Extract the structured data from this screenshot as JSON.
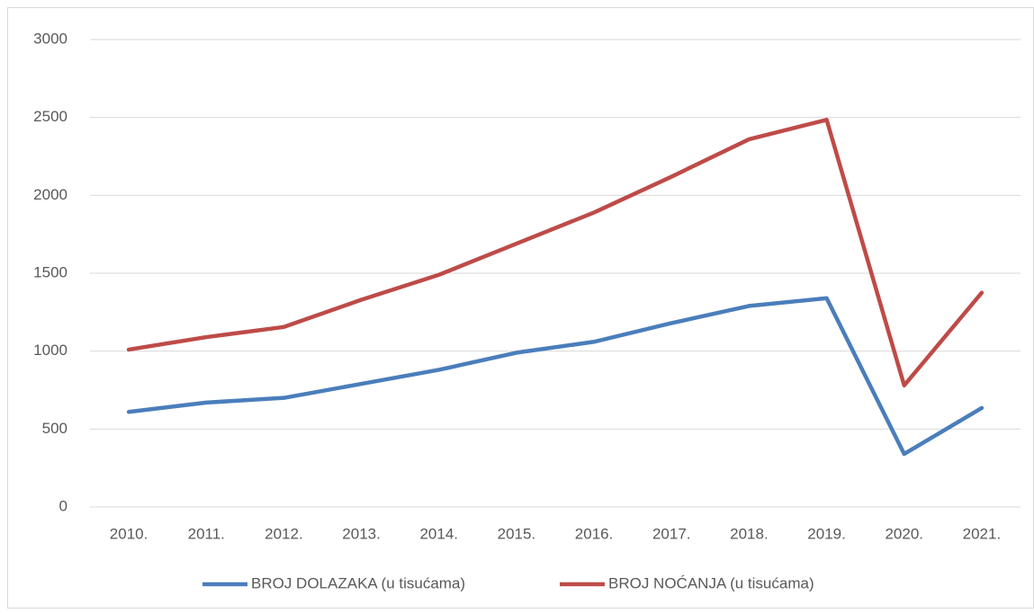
{
  "chart_data": {
    "type": "line",
    "categories": [
      "2010.",
      "2011.",
      "2012.",
      "2013.",
      "2014.",
      "2015.",
      "2016.",
      "2017.",
      "2018.",
      "2019.",
      "2020.",
      "2021."
    ],
    "series": [
      {
        "name": "BROJ DOLAZAKA (u tisućama)",
        "color": "#4a7ebb",
        "values": [
          610,
          670,
          700,
          790,
          880,
          990,
          1060,
          1180,
          1290,
          1340,
          340,
          635
        ]
      },
      {
        "name": "BROJ NOĆANJA (u tisućama)",
        "color": "#be4b48",
        "values": [
          1010,
          1090,
          1155,
          1330,
          1490,
          1690,
          1890,
          2120,
          2360,
          2485,
          780,
          1375
        ]
      }
    ],
    "ylim": [
      0,
      3000
    ],
    "yticks": [
      0,
      500,
      1000,
      1500,
      2000,
      2500,
      3000
    ],
    "grid": true,
    "legend": "bottom"
  }
}
